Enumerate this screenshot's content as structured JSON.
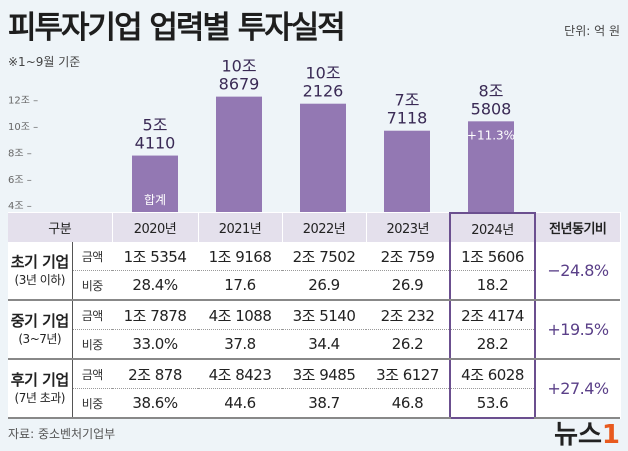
{
  "title": "피투자기업 업력별 투자실적",
  "unit": "단위: 억 원",
  "note": "※1~9월 기준",
  "source": "자료: 중소벤처기업부",
  "logo": "뉴스1",
  "colors": {
    "bar": "#9378b3",
    "header": "#e4e0ec",
    "highlight": "#6b4f8f",
    "background": "#eef4f8"
  },
  "chart_data": {
    "type": "bar",
    "title": "피투자기업 업력별 투자실적",
    "categories": [
      "2020년",
      "2021년",
      "2022년",
      "2023년",
      "2024년"
    ],
    "values": [
      54110,
      108679,
      102126,
      77118,
      85808
    ],
    "value_labels": [
      [
        "5조",
        "4110"
      ],
      [
        "10조",
        "8679"
      ],
      [
        "10조",
        "2126"
      ],
      [
        "7조",
        "7118"
      ],
      [
        "8조",
        "5808"
      ]
    ],
    "bar_annotations": [
      "합계",
      "",
      "",
      "",
      "+11.3%"
    ],
    "yticks": [
      "2조",
      "4조",
      "6조",
      "8조",
      "10조",
      "12조"
    ],
    "ytick_values": [
      20000,
      40000,
      60000,
      80000,
      100000,
      120000
    ],
    "ylim": [
      0,
      120000
    ],
    "grid": false
  },
  "table": {
    "headers": [
      "구분",
      "2020년",
      "2021년",
      "2022년",
      "2023년",
      "2024년",
      "전년동기비"
    ],
    "groups": [
      {
        "name": "초기 기업",
        "sub": "(3년 이하)",
        "rows": [
          {
            "label": "금액",
            "values": [
              "1조 5354",
              "1조 9168",
              "2조 7502",
              "2조 759",
              "1조 5606"
            ]
          },
          {
            "label": "비중",
            "values": [
              "28.4%",
              "17.6",
              "26.9",
              "26.9",
              "18.2"
            ]
          }
        ],
        "yoy": "−24.8%"
      },
      {
        "name": "중기 기업",
        "sub": "(3~7년)",
        "rows": [
          {
            "label": "금액",
            "values": [
              "1조 7878",
              "4조 1088",
              "3조 5140",
              "2조 232",
              "2조 4174"
            ]
          },
          {
            "label": "비중",
            "values": [
              "33.0%",
              "37.8",
              "34.4",
              "26.2",
              "28.2"
            ]
          }
        ],
        "yoy": "+19.5%"
      },
      {
        "name": "후기 기업",
        "sub": "(7년 초과)",
        "rows": [
          {
            "label": "금액",
            "values": [
              "2조 878",
              "4조 8423",
              "3조 9485",
              "3조 6127",
              "4조 6028"
            ]
          },
          {
            "label": "비중",
            "values": [
              "38.6%",
              "44.6",
              "38.7",
              "46.8",
              "53.6"
            ]
          }
        ],
        "yoy": "+27.4%"
      }
    ]
  }
}
